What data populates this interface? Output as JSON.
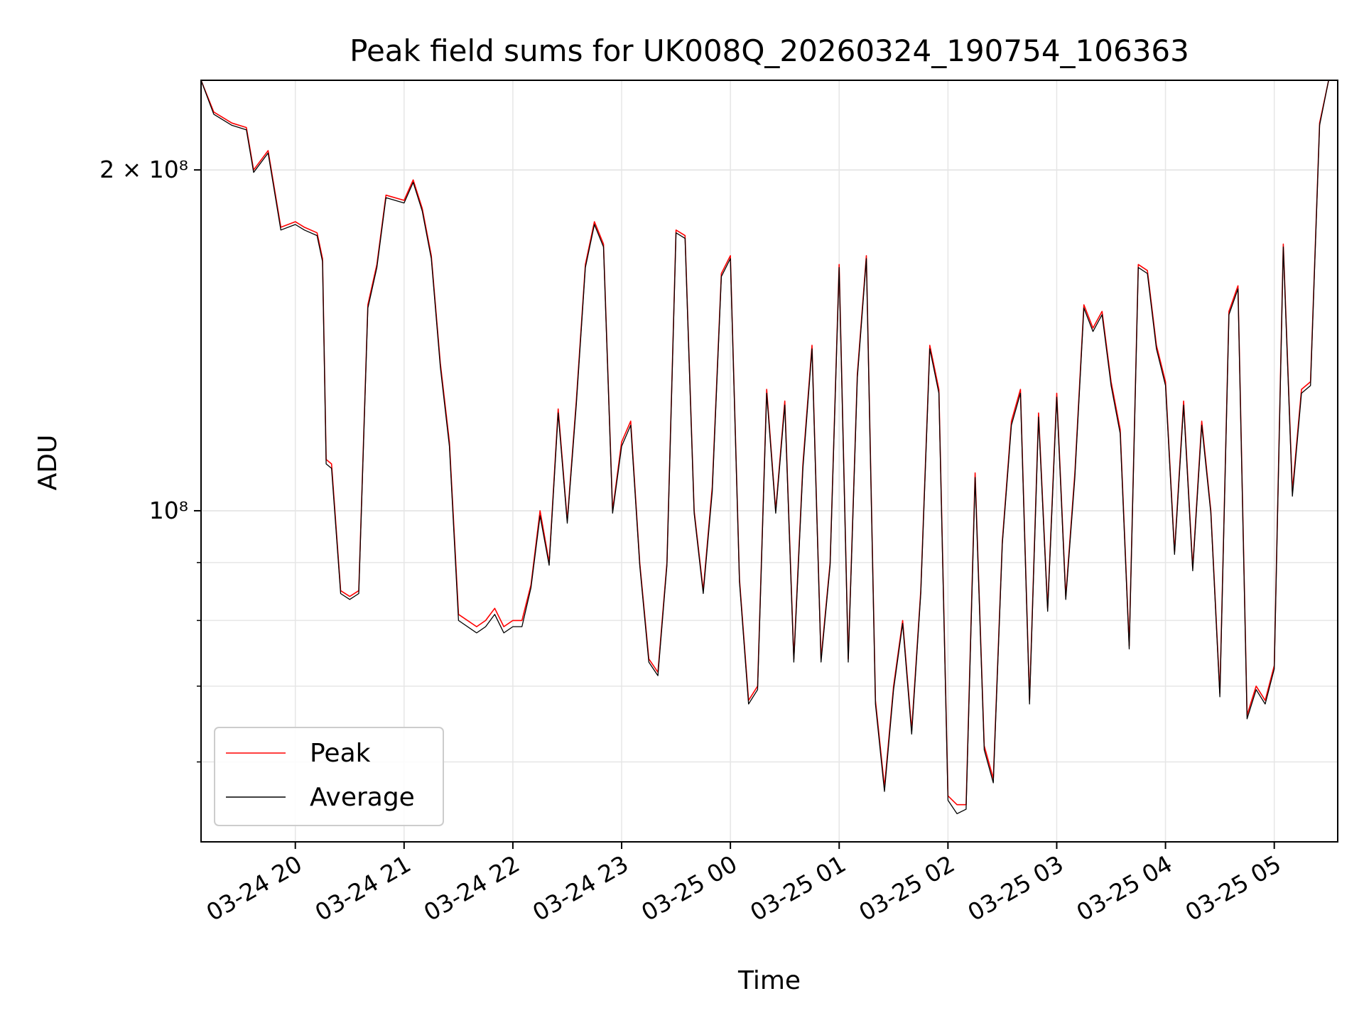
{
  "chart_data": {
    "type": "line",
    "title": "Peak field sums for UK008Q_20260324_190754_106363",
    "xlabel": "Time",
    "ylabel": "ADU",
    "x_ticks": [
      "03-24 20",
      "03-24 21",
      "03-24 22",
      "03-24 23",
      "03-25 00",
      "03-25 01",
      "03-25 02",
      "03-25 03",
      "03-25 04",
      "03-25 05"
    ],
    "y_ticks": [
      {
        "label": "2 × 10⁸",
        "value": 200000000
      },
      {
        "label": "10⁸",
        "value": 100000000
      }
    ],
    "y_scale": "log",
    "ylim": [
      51000000,
      240000000
    ],
    "xlim": [
      "2026-03-24 19:08",
      "2026-03-25 05:35"
    ],
    "grid": true,
    "legend_position": "lower-left",
    "x": [
      "2026-03-24 19:08",
      "2026-03-24 19:15",
      "2026-03-24 19:25",
      "2026-03-24 19:33",
      "2026-03-24 19:37",
      "2026-03-24 19:45",
      "2026-03-24 19:52",
      "2026-03-24 20:00",
      "2026-03-24 20:05",
      "2026-03-24 20:12",
      "2026-03-24 20:15",
      "2026-03-24 20:17",
      "2026-03-24 20:20",
      "2026-03-24 20:25",
      "2026-03-24 20:30",
      "2026-03-24 20:35",
      "2026-03-24 20:40",
      "2026-03-24 20:45",
      "2026-03-24 20:50",
      "2026-03-24 21:00",
      "2026-03-24 21:05",
      "2026-03-24 21:10",
      "2026-03-24 21:15",
      "2026-03-24 21:20",
      "2026-03-24 21:25",
      "2026-03-24 21:30",
      "2026-03-24 21:40",
      "2026-03-24 21:45",
      "2026-03-24 21:50",
      "2026-03-24 21:55",
      "2026-03-24 22:00",
      "2026-03-24 22:05",
      "2026-03-24 22:10",
      "2026-03-24 22:15",
      "2026-03-24 22:20",
      "2026-03-24 22:25",
      "2026-03-24 22:30",
      "2026-03-24 22:35",
      "2026-03-24 22:40",
      "2026-03-24 22:45",
      "2026-03-24 22:50",
      "2026-03-24 22:55",
      "2026-03-24 23:00",
      "2026-03-24 23:05",
      "2026-03-24 23:10",
      "2026-03-24 23:15",
      "2026-03-24 23:20",
      "2026-03-24 23:25",
      "2026-03-24 23:30",
      "2026-03-24 23:35",
      "2026-03-24 23:40",
      "2026-03-24 23:45",
      "2026-03-24 23:50",
      "2026-03-24 23:55",
      "2026-03-25 00:00",
      "2026-03-25 00:05",
      "2026-03-25 00:10",
      "2026-03-25 00:15",
      "2026-03-25 00:20",
      "2026-03-25 00:25",
      "2026-03-25 00:30",
      "2026-03-25 00:35",
      "2026-03-25 00:40",
      "2026-03-25 00:45",
      "2026-03-25 00:50",
      "2026-03-25 00:55",
      "2026-03-25 01:00",
      "2026-03-25 01:05",
      "2026-03-25 01:10",
      "2026-03-25 01:15",
      "2026-03-25 01:20",
      "2026-03-25 01:25",
      "2026-03-25 01:30",
      "2026-03-25 01:35",
      "2026-03-25 01:40",
      "2026-03-25 01:45",
      "2026-03-25 01:50",
      "2026-03-25 01:55",
      "2026-03-25 02:00",
      "2026-03-25 02:05",
      "2026-03-25 02:10",
      "2026-03-25 02:15",
      "2026-03-25 02:20",
      "2026-03-25 02:25",
      "2026-03-25 02:30",
      "2026-03-25 02:35",
      "2026-03-25 02:40",
      "2026-03-25 02:45",
      "2026-03-25 02:50",
      "2026-03-25 02:55",
      "2026-03-25 03:00",
      "2026-03-25 03:05",
      "2026-03-25 03:10",
      "2026-03-25 03:15",
      "2026-03-25 03:20",
      "2026-03-25 03:25",
      "2026-03-25 03:30",
      "2026-03-25 03:35",
      "2026-03-25 03:40",
      "2026-03-25 03:45",
      "2026-03-25 03:50",
      "2026-03-25 03:55",
      "2026-03-25 04:00",
      "2026-03-25 04:05",
      "2026-03-25 04:10",
      "2026-03-25 04:15",
      "2026-03-25 04:20",
      "2026-03-25 04:25",
      "2026-03-25 04:30",
      "2026-03-25 04:35",
      "2026-03-25 04:40",
      "2026-03-25 04:45",
      "2026-03-25 04:50",
      "2026-03-25 04:55",
      "2026-03-25 05:00",
      "2026-03-25 05:05",
      "2026-03-25 05:10",
      "2026-03-25 05:15",
      "2026-03-25 05:20",
      "2026-03-25 05:25",
      "2026-03-25 05:30",
      "2026-03-25 05:35"
    ],
    "series": [
      {
        "name": "Peak",
        "color": "#ff0000",
        "values": [
          240000000,
          225000000,
          220000000,
          218000000,
          200000000,
          208000000,
          178000000,
          180000000,
          178000000,
          176000000,
          167000000,
          111000000,
          110000000,
          85000000,
          84000000,
          85000000,
          152000000,
          165000000,
          190000000,
          188000000,
          196000000,
          185000000,
          168000000,
          135000000,
          115000000,
          81000000,
          79000000,
          80000000,
          82000000,
          79000000,
          80000000,
          80000000,
          86000000,
          100000000,
          90000000,
          123000000,
          98000000,
          125000000,
          165000000,
          180000000,
          172000000,
          100000000,
          115000000,
          120000000,
          90000000,
          74000000,
          72000000,
          90000000,
          177000000,
          175000000,
          100000000,
          85000000,
          105000000,
          162000000,
          168000000,
          87000000,
          68000000,
          70000000,
          128000000,
          100000000,
          125000000,
          74000000,
          110000000,
          140000000,
          74000000,
          90000000,
          165000000,
          74000000,
          132000000,
          168000000,
          68000000,
          57000000,
          70000000,
          80000000,
          64000000,
          85000000,
          140000000,
          128000000,
          56000000,
          55000000,
          55000000,
          108000000,
          62000000,
          58000000,
          94000000,
          120000000,
          128000000,
          68000000,
          122000000,
          82000000,
          127000000,
          84000000,
          108000000,
          152000000,
          145000000,
          150000000,
          130000000,
          118000000,
          76000000,
          165000000,
          163000000,
          140000000,
          130000000,
          92000000,
          125000000,
          89000000,
          120000000,
          100000000,
          69000000,
          150000000,
          158000000,
          66000000,
          70000000,
          68000000,
          73000000,
          172000000,
          104000000,
          128000000,
          130000000,
          220000000,
          240000000,
          240000000
        ]
      },
      {
        "name": "Average",
        "color": "#000000",
        "values": [
          240000000,
          224000000,
          219000000,
          217000000,
          199000000,
          207000000,
          177000000,
          179000000,
          177000000,
          175000000,
          166000000,
          110000000,
          109000000,
          84500000,
          83500000,
          84500000,
          151000000,
          164000000,
          189000000,
          187000000,
          195000000,
          184000000,
          167000000,
          134000000,
          114000000,
          80000000,
          78000000,
          79000000,
          81000000,
          78000000,
          79000000,
          79000000,
          85500000,
          99000000,
          89500000,
          122000000,
          97500000,
          124000000,
          164000000,
          179000000,
          171000000,
          99500000,
          114000000,
          119000000,
          89500000,
          73500000,
          71500000,
          89500000,
          176000000,
          174000000,
          99500000,
          84500000,
          104000000,
          161000000,
          167000000,
          86500000,
          67500000,
          69500000,
          127000000,
          99500000,
          124000000,
          73500000,
          109000000,
          139000000,
          73500000,
          89500000,
          164000000,
          73500000,
          131000000,
          167000000,
          67500000,
          56500000,
          69500000,
          79500000,
          63500000,
          84500000,
          139000000,
          127000000,
          55500000,
          54000000,
          54500000,
          107000000,
          61500000,
          57500000,
          93500000,
          119000000,
          127000000,
          67500000,
          121000000,
          81500000,
          126000000,
          83500000,
          107000000,
          151000000,
          144000000,
          149000000,
          129000000,
          117000000,
          75500000,
          164000000,
          162000000,
          139000000,
          129000000,
          91500000,
          124000000,
          88500000,
          119000000,
          99500000,
          68500000,
          149000000,
          157000000,
          65500000,
          69500000,
          67500000,
          72500000,
          171000000,
          103000000,
          127000000,
          129000000,
          219000000,
          240000000,
          240000000
        ]
      }
    ]
  }
}
